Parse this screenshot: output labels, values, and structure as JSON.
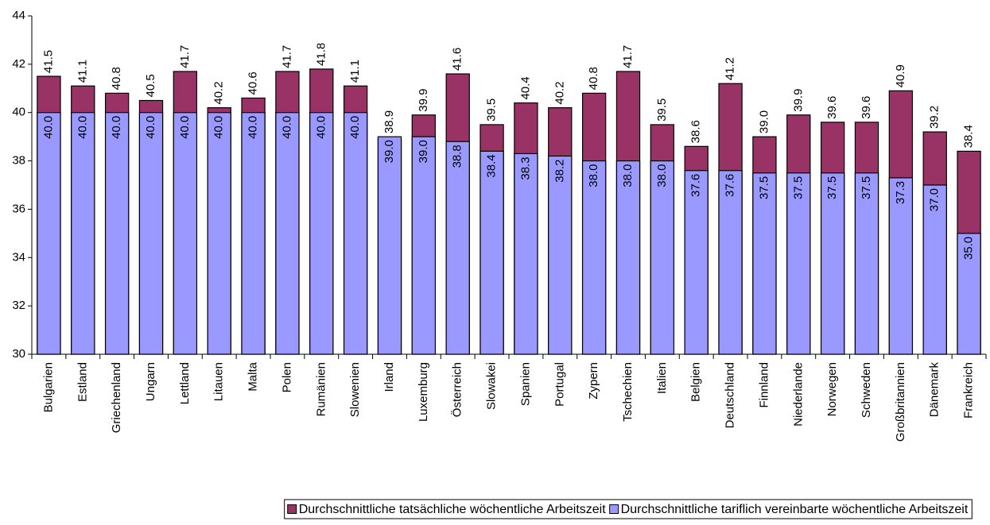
{
  "chart_data": {
    "type": "bar",
    "overlap": true,
    "categories": [
      "Bulgarien",
      "Estland",
      "Griechenland",
      "Ungarn",
      "Lettland",
      "Litauen",
      "Malta",
      "Polen",
      "Rumänien",
      "Slowenien",
      "Irland",
      "Luxemburg",
      "Österreich",
      "Slowakei",
      "Spanien",
      "Portugal",
      "Zypern",
      "Tschechien",
      "Italien",
      "Belgien",
      "Deutschland",
      "Finnland",
      "Niederlande",
      "Norwegen",
      "Schweden",
      "Großbritannien",
      "Dänemark",
      "Frankreich"
    ],
    "series": [
      {
        "name": "Durchschnittliche tatsächliche wöchentliche Arbeitszeit",
        "color": "#993366",
        "label_position": "above",
        "values": [
          41.5,
          41.1,
          40.8,
          40.5,
          41.7,
          40.2,
          40.6,
          41.7,
          41.8,
          41.1,
          38.9,
          39.9,
          41.6,
          39.5,
          40.4,
          40.2,
          40.8,
          41.7,
          39.5,
          38.6,
          41.2,
          39.0,
          39.9,
          39.6,
          39.6,
          40.9,
          39.2,
          38.4
        ],
        "value_labels": [
          "41.5",
          "41.1",
          "40.8",
          "40.5",
          "41.7",
          "40.2",
          "40.6",
          "41.7",
          "41.8",
          "41.1",
          "38.9",
          "39.9",
          "41.6",
          "39.5",
          "40.4",
          "40.2",
          "40.8",
          "41.7",
          "39.5",
          "38.6",
          "41.2",
          "39.0",
          "39.9",
          "39.6",
          "39.6",
          "40.9",
          "39.2",
          "38.4"
        ]
      },
      {
        "name": "Durchschnittliche tariflich vereinbarte wöchentliche Arbeitszeit",
        "color": "#9999ff",
        "label_position": "inside",
        "values": [
          40,
          40,
          40,
          40,
          40,
          40,
          40,
          40,
          40,
          40,
          39,
          39,
          38.8,
          38.4,
          38.3,
          38.2,
          38,
          38,
          38,
          37.6,
          37.6,
          37.5,
          37.5,
          37.5,
          37.5,
          37.3,
          37,
          35
        ],
        "value_labels": [
          "40.0",
          "40.0",
          "40.0",
          "40.0",
          "40.0",
          "40.0",
          "40.0",
          "40.0",
          "40.0",
          "40.0",
          "39.0",
          "39.0",
          "38.8",
          "38.4",
          "38.3",
          "38.2",
          "38.0",
          "38.0",
          "38.0",
          "37.6",
          "37.6",
          "37.5",
          "37.5",
          "37.5",
          "37.5",
          "37.3",
          "37.0",
          "35.0"
        ]
      }
    ],
    "ylim": [
      30,
      44
    ],
    "yticks": [
      30,
      32,
      34,
      36,
      38,
      40,
      42,
      44
    ],
    "grid": false,
    "legend": "bottom"
  }
}
